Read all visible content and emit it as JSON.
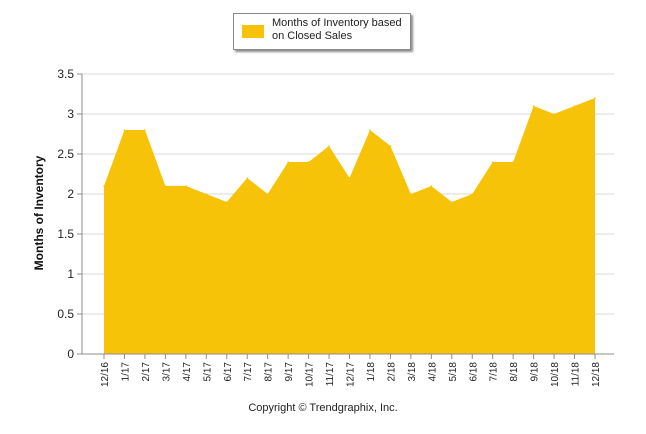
{
  "chart_data": {
    "type": "area",
    "title": "",
    "xlabel": "",
    "ylabel": "Months of Inventory",
    "ylim": [
      0,
      3.5
    ],
    "yticks": [
      "0",
      "0.5",
      "1",
      "1.5",
      "2",
      "2.5",
      "3",
      "3.5"
    ],
    "grid": true,
    "legend_position": "top-center",
    "categories": [
      "12/16",
      "1/17",
      "2/17",
      "3/17",
      "4/17",
      "5/17",
      "6/17",
      "7/17",
      "8/17",
      "9/17",
      "10/17",
      "11/17",
      "12/17",
      "1/18",
      "2/18",
      "3/18",
      "4/18",
      "5/18",
      "6/18",
      "7/18",
      "8/18",
      "9/18",
      "10/18",
      "11/18",
      "12/18"
    ],
    "series": [
      {
        "name": "Months of Inventory based on Closed Sales",
        "color": "#F7C308",
        "values": [
          2.1,
          2.8,
          2.8,
          2.1,
          2.1,
          2.0,
          1.9,
          2.2,
          2.0,
          2.4,
          2.4,
          2.6,
          2.2,
          2.8,
          2.6,
          2.0,
          2.1,
          1.9,
          2.0,
          2.4,
          2.4,
          3.1,
          3.0,
          3.1,
          3.2
        ]
      }
    ]
  },
  "legend": {
    "line1": "Months of Inventory based",
    "line2": "on Closed Sales"
  },
  "footer": {
    "copyright": "Copyright © Trendgraphix, Inc."
  }
}
